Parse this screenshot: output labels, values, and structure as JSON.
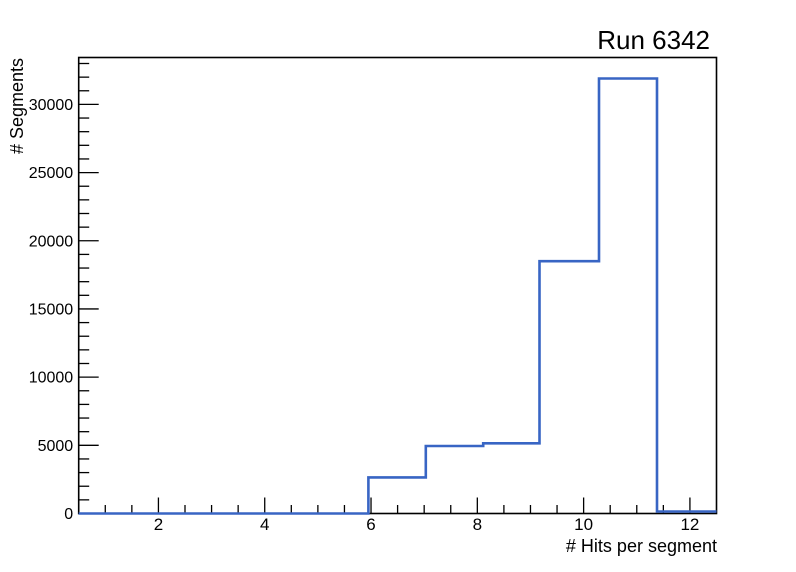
{
  "chart_data": {
    "type": "histogram-step",
    "title": "Run 6342",
    "xlabel": "# Hits per segment",
    "ylabel": "# Segments",
    "x_range": [
      0.5,
      12.5
    ],
    "y_range": [
      0,
      33440
    ],
    "bins": {
      "edges": [
        0.5,
        5.95,
        7.03,
        8.11,
        9.17,
        10.29,
        11.38,
        12.5
      ],
      "counts": [
        0,
        2650,
        4950,
        5150,
        18500,
        31900,
        150
      ]
    },
    "x_ticks": {
      "major": [
        2,
        4,
        6,
        8,
        10,
        12
      ],
      "labels": [
        "2",
        "4",
        "6",
        "8",
        "10",
        "12"
      ],
      "minor_step": 0.5
    },
    "y_ticks": {
      "major": [
        0,
        5000,
        10000,
        15000,
        20000,
        25000,
        30000
      ],
      "labels": [
        "0",
        "5000",
        "10000",
        "15000",
        "20000",
        "25000",
        "30000"
      ],
      "minor_step": 1000
    },
    "grid": false,
    "legend": null,
    "line_color": "#3865c4",
    "axis_color": "#000000",
    "background_color": "#ffffff"
  }
}
